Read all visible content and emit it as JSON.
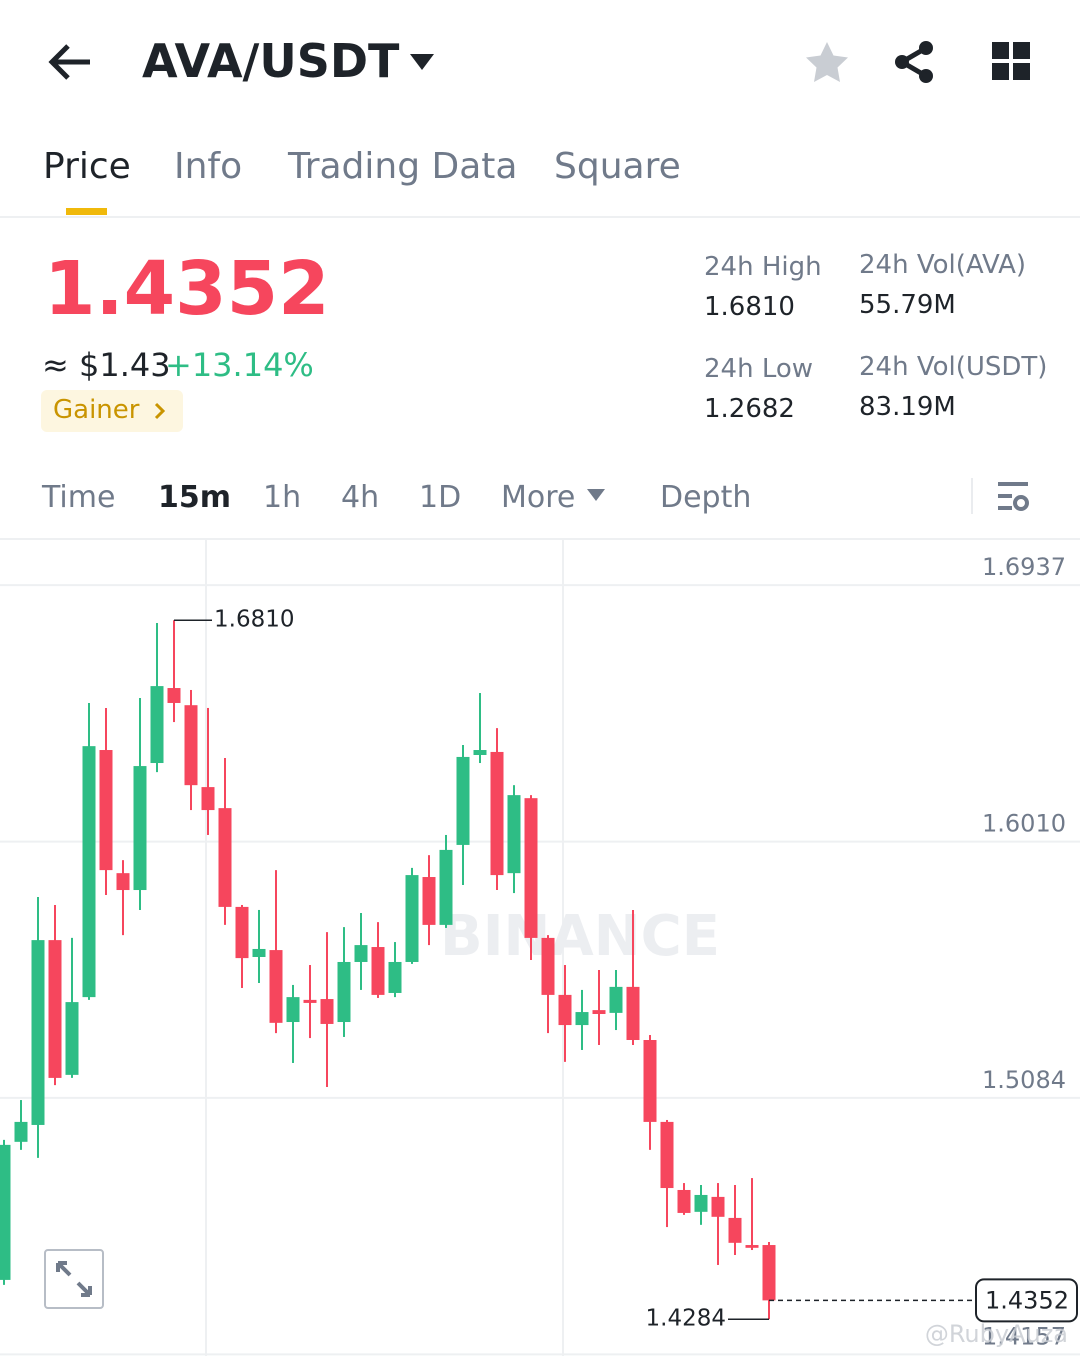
{
  "header": {
    "pair": "AVA/USDT"
  },
  "tabs": [
    "Price",
    "Info",
    "Trading Data",
    "Square"
  ],
  "ticker": {
    "price": "1.4352",
    "fiat": "≈ $1.43",
    "change": "+13.14%",
    "badge": "Gainer"
  },
  "stats": [
    {
      "label": "24h High",
      "value": "1.6810"
    },
    {
      "label": "24h Vol(AVA)",
      "value": "55.79M"
    },
    {
      "label": "24h Low",
      "value": "1.2682"
    },
    {
      "label": "24h Vol(USDT)",
      "value": "83.19M"
    }
  ],
  "intervals": [
    "Time",
    "15m",
    "1h",
    "4h",
    "1D",
    "More",
    "Depth"
  ],
  "chart_data": {
    "type": "candlestick",
    "up_color": "#2ebd85",
    "down_color": "#f6465d",
    "ylim": [
      1.4151,
      1.71
    ],
    "yticks": [
      1.6937,
      {
        "value": 1.601,
        "label": "1.6010"
      },
      1.5084,
      1.4157
    ],
    "grid": true,
    "open": [
      1.4426,
      1.4925,
      1.4986,
      1.5654,
      1.5167,
      1.5448,
      1.6341,
      1.5896,
      1.5835,
      1.6294,
      1.6565,
      1.6503,
      1.6207,
      1.6131,
      1.5774,
      1.5593,
      1.5618,
      1.5358,
      1.5438,
      1.5441,
      1.5358,
      1.5575,
      1.5629,
      1.5463,
      1.5575,
      1.5882,
      1.5709,
      1.5998,
      1.6323,
      1.6334,
      1.5896,
      1.6167,
      1.5662,
      1.5456,
      1.5347,
      1.5401,
      1.5391,
      1.5485,
      1.5293,
      1.4997,
      1.4751,
      1.4672,
      1.4726,
      1.465,
      1.4552,
      1.4552
    ],
    "high": [
      1.4932,
      1.5076,
      1.581,
      1.5781,
      1.5662,
      1.6511,
      1.6493,
      1.5943,
      1.6529,
      1.68,
      1.681,
      1.6558,
      1.6493,
      1.6312,
      1.5781,
      1.5763,
      1.5907,
      1.5492,
      1.5564,
      1.5683,
      1.5701,
      1.5752,
      1.5719,
      1.5647,
      1.5915,
      1.5961,
      1.6034,
      1.6359,
      1.6547,
      1.642,
      1.6214,
      1.6178,
      1.5672,
      1.5564,
      1.5474,
      1.5546,
      1.5546,
      1.5763,
      1.5311,
      1.5004,
      1.4776,
      1.4769,
      1.4776,
      1.4769,
      1.4794,
      1.4563
    ],
    "low": [
      1.4408,
      1.4896,
      1.4867,
      1.513,
      1.5156,
      1.5438,
      1.5817,
      1.5672,
      1.5763,
      1.6261,
      1.6442,
      1.6124,
      1.6034,
      1.5709,
      1.5481,
      1.5499,
      1.5318,
      1.521,
      1.53,
      1.5123,
      1.5304,
      1.5474,
      1.5445,
      1.5448,
      1.5568,
      1.5636,
      1.5698,
      1.5853,
      1.6294,
      1.5835,
      1.5824,
      1.5582,
      1.5318,
      1.5214,
      1.5257,
      1.5275,
      1.5329,
      1.5275,
      1.4896,
      1.4617,
      1.4661,
      1.4625,
      1.448,
      1.4516,
      1.4534,
      1.4284
    ],
    "close": [
      1.4914,
      1.4997,
      1.5654,
      1.5156,
      1.543,
      1.6355,
      1.5907,
      1.5835,
      1.6283,
      1.6572,
      1.6511,
      1.6214,
      1.6124,
      1.5774,
      1.5589,
      1.5622,
      1.5355,
      1.5448,
      1.5427,
      1.5351,
      1.5575,
      1.5636,
      1.5456,
      1.5575,
      1.5889,
      1.5709,
      1.598,
      1.6316,
      1.6341,
      1.5889,
      1.6178,
      1.5662,
      1.5456,
      1.5347,
      1.5394,
      1.5387,
      1.5485,
      1.5293,
      1.4997,
      1.4758,
      1.4668,
      1.4733,
      1.4654,
      1.456,
      1.4542,
      1.4352
    ],
    "annotations": [
      {
        "value": 1.681,
        "label": "1.6810"
      },
      1.4284
    ],
    "last_price": 1.4352,
    "watermark": "BINANCE",
    "credit": "@RubyAuza"
  }
}
